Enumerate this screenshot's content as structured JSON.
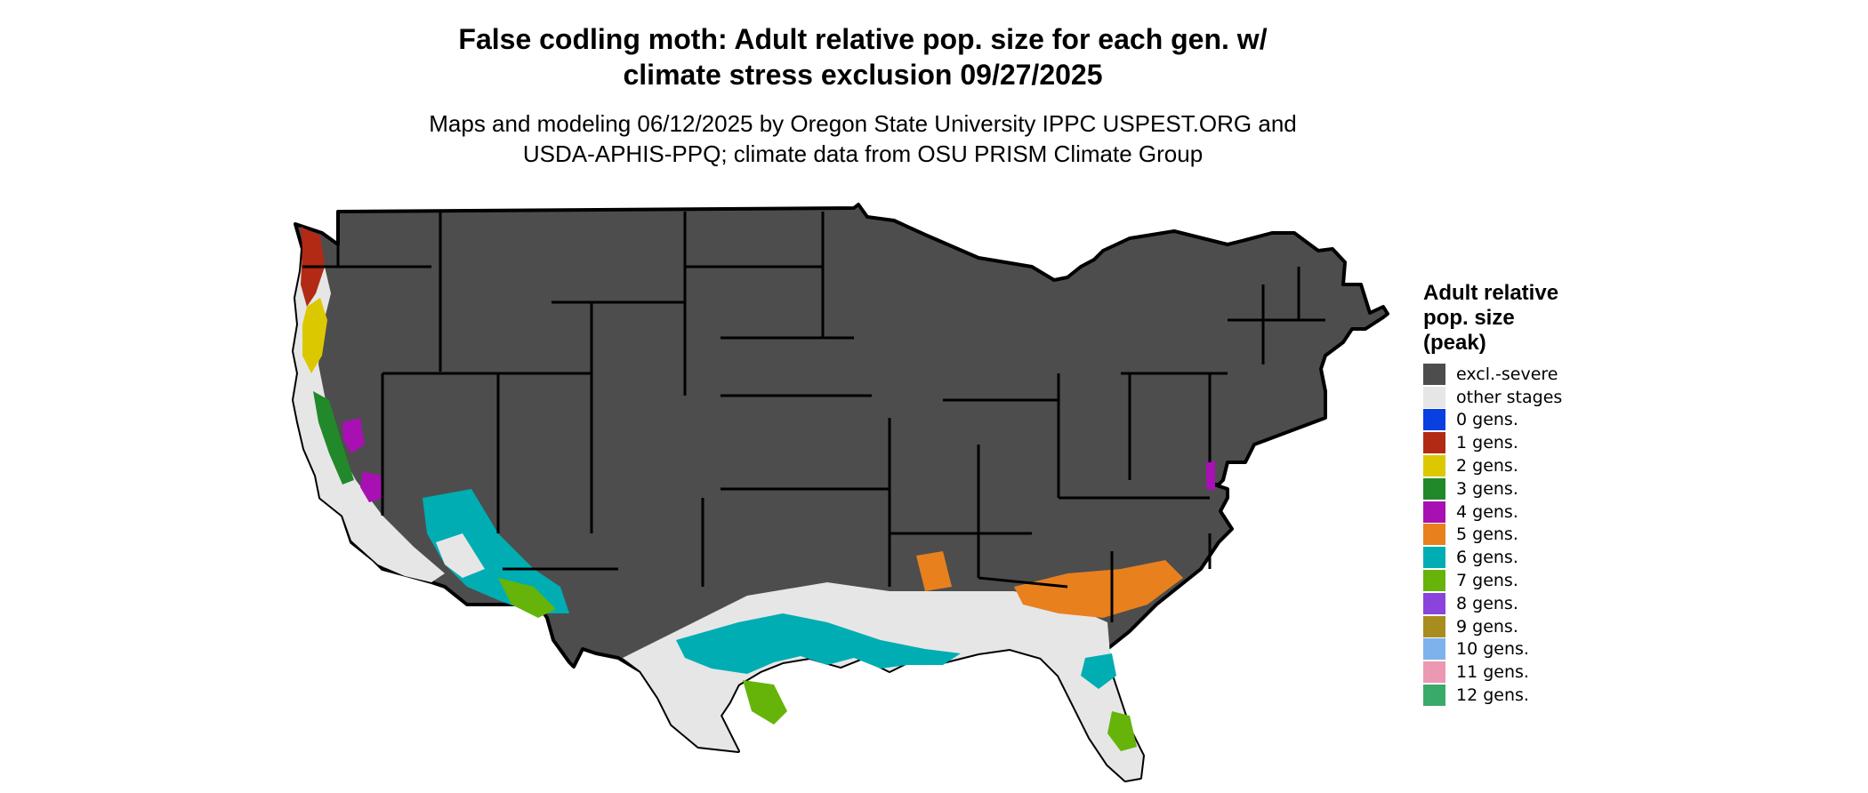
{
  "title": {
    "line1": "False codling moth: Adult relative pop. size for each gen. w/",
    "line2": "climate stress exclusion 09/27/2025"
  },
  "subtitle": {
    "line1": "Maps and modeling 06/12/2025 by Oregon State University IPPC USPEST.ORG and",
    "line2": "USDA-APHIS-PPQ; climate data from OSU PRISM Climate Group"
  },
  "legend": {
    "title_line1": "Adult relative",
    "title_line2": "pop. size",
    "title_line3": "(peak)",
    "items": [
      {
        "label": "excl.-severe",
        "color": "#4d4d4d"
      },
      {
        "label": "other stages",
        "color": "#e6e6e6"
      },
      {
        "label": "0 gens.",
        "color": "#0a3fe0"
      },
      {
        "label": "1 gens.",
        "color": "#b22a14"
      },
      {
        "label": "2 gens.",
        "color": "#dcc800"
      },
      {
        "label": "3 gens.",
        "color": "#21892a"
      },
      {
        "label": "4 gens.",
        "color": "#a810b4"
      },
      {
        "label": "5 gens.",
        "color": "#e8801e"
      },
      {
        "label": "6 gens.",
        "color": "#00adb3"
      },
      {
        "label": "7 gens.",
        "color": "#66b40a"
      },
      {
        "label": "8 gens.",
        "color": "#8a44dc"
      },
      {
        "label": "9 gens.",
        "color": "#a88c1e"
      },
      {
        "label": "10 gens.",
        "color": "#7eb2ec"
      },
      {
        "label": "11 gens.",
        "color": "#ec98b2"
      },
      {
        "label": "12 gens.",
        "color": "#3aaa6a"
      }
    ]
  }
}
